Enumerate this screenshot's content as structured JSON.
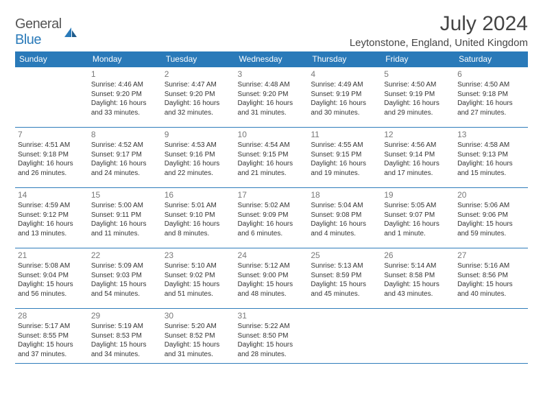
{
  "logo": {
    "text1": "General",
    "text2": "Blue"
  },
  "title": "July 2024",
  "location": "Leytonstone, England, United Kingdom",
  "colors": {
    "header_bg": "#2a7ab9",
    "header_text": "#ffffff",
    "border": "#2a7ab9",
    "daynum": "#777777",
    "body_text": "#333333"
  },
  "weekdays": [
    "Sunday",
    "Monday",
    "Tuesday",
    "Wednesday",
    "Thursday",
    "Friday",
    "Saturday"
  ],
  "start_offset": 1,
  "days": [
    {
      "n": 1,
      "sunrise": "4:46 AM",
      "sunset": "9:20 PM",
      "day_h": 16,
      "day_m": 33
    },
    {
      "n": 2,
      "sunrise": "4:47 AM",
      "sunset": "9:20 PM",
      "day_h": 16,
      "day_m": 32
    },
    {
      "n": 3,
      "sunrise": "4:48 AM",
      "sunset": "9:20 PM",
      "day_h": 16,
      "day_m": 31
    },
    {
      "n": 4,
      "sunrise": "4:49 AM",
      "sunset": "9:19 PM",
      "day_h": 16,
      "day_m": 30
    },
    {
      "n": 5,
      "sunrise": "4:50 AM",
      "sunset": "9:19 PM",
      "day_h": 16,
      "day_m": 29
    },
    {
      "n": 6,
      "sunrise": "4:50 AM",
      "sunset": "9:18 PM",
      "day_h": 16,
      "day_m": 27
    },
    {
      "n": 7,
      "sunrise": "4:51 AM",
      "sunset": "9:18 PM",
      "day_h": 16,
      "day_m": 26
    },
    {
      "n": 8,
      "sunrise": "4:52 AM",
      "sunset": "9:17 PM",
      "day_h": 16,
      "day_m": 24
    },
    {
      "n": 9,
      "sunrise": "4:53 AM",
      "sunset": "9:16 PM",
      "day_h": 16,
      "day_m": 22
    },
    {
      "n": 10,
      "sunrise": "4:54 AM",
      "sunset": "9:15 PM",
      "day_h": 16,
      "day_m": 21
    },
    {
      "n": 11,
      "sunrise": "4:55 AM",
      "sunset": "9:15 PM",
      "day_h": 16,
      "day_m": 19
    },
    {
      "n": 12,
      "sunrise": "4:56 AM",
      "sunset": "9:14 PM",
      "day_h": 16,
      "day_m": 17
    },
    {
      "n": 13,
      "sunrise": "4:58 AM",
      "sunset": "9:13 PM",
      "day_h": 16,
      "day_m": 15
    },
    {
      "n": 14,
      "sunrise": "4:59 AM",
      "sunset": "9:12 PM",
      "day_h": 16,
      "day_m": 13
    },
    {
      "n": 15,
      "sunrise": "5:00 AM",
      "sunset": "9:11 PM",
      "day_h": 16,
      "day_m": 11
    },
    {
      "n": 16,
      "sunrise": "5:01 AM",
      "sunset": "9:10 PM",
      "day_h": 16,
      "day_m": 8
    },
    {
      "n": 17,
      "sunrise": "5:02 AM",
      "sunset": "9:09 PM",
      "day_h": 16,
      "day_m": 6
    },
    {
      "n": 18,
      "sunrise": "5:04 AM",
      "sunset": "9:08 PM",
      "day_h": 16,
      "day_m": 4
    },
    {
      "n": 19,
      "sunrise": "5:05 AM",
      "sunset": "9:07 PM",
      "day_h": 16,
      "day_m": 1
    },
    {
      "n": 20,
      "sunrise": "5:06 AM",
      "sunset": "9:06 PM",
      "day_h": 15,
      "day_m": 59
    },
    {
      "n": 21,
      "sunrise": "5:08 AM",
      "sunset": "9:04 PM",
      "day_h": 15,
      "day_m": 56
    },
    {
      "n": 22,
      "sunrise": "5:09 AM",
      "sunset": "9:03 PM",
      "day_h": 15,
      "day_m": 54
    },
    {
      "n": 23,
      "sunrise": "5:10 AM",
      "sunset": "9:02 PM",
      "day_h": 15,
      "day_m": 51
    },
    {
      "n": 24,
      "sunrise": "5:12 AM",
      "sunset": "9:00 PM",
      "day_h": 15,
      "day_m": 48
    },
    {
      "n": 25,
      "sunrise": "5:13 AM",
      "sunset": "8:59 PM",
      "day_h": 15,
      "day_m": 45
    },
    {
      "n": 26,
      "sunrise": "5:14 AM",
      "sunset": "8:58 PM",
      "day_h": 15,
      "day_m": 43
    },
    {
      "n": 27,
      "sunrise": "5:16 AM",
      "sunset": "8:56 PM",
      "day_h": 15,
      "day_m": 40
    },
    {
      "n": 28,
      "sunrise": "5:17 AM",
      "sunset": "8:55 PM",
      "day_h": 15,
      "day_m": 37
    },
    {
      "n": 29,
      "sunrise": "5:19 AM",
      "sunset": "8:53 PM",
      "day_h": 15,
      "day_m": 34
    },
    {
      "n": 30,
      "sunrise": "5:20 AM",
      "sunset": "8:52 PM",
      "day_h": 15,
      "day_m": 31
    },
    {
      "n": 31,
      "sunrise": "5:22 AM",
      "sunset": "8:50 PM",
      "day_h": 15,
      "day_m": 28
    }
  ]
}
